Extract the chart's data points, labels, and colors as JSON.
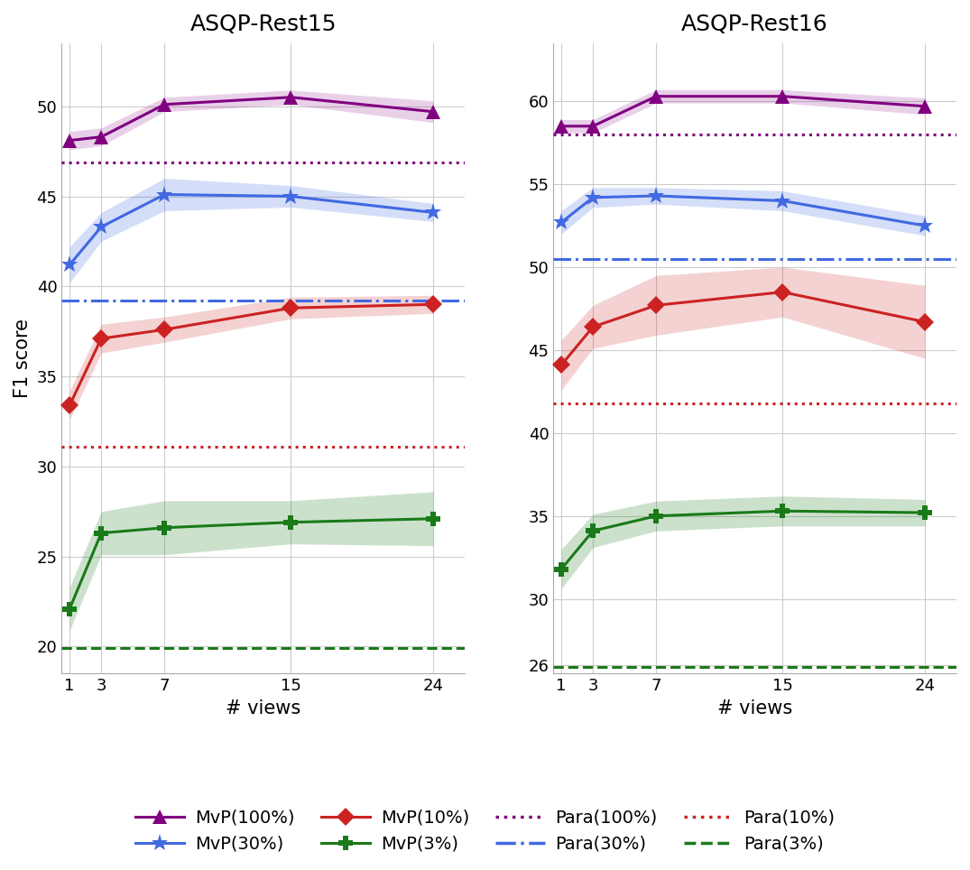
{
  "x_ticks": [
    1,
    3,
    7,
    15,
    24
  ],
  "rest15": {
    "title": "ASQP-Rest15",
    "ylim": [
      18.5,
      53.5
    ],
    "yticks": [
      20,
      25,
      30,
      35,
      40,
      45,
      50
    ],
    "mvp_100_mean": [
      48.1,
      48.3,
      50.1,
      50.5,
      49.7
    ],
    "mvp_100_std": [
      0.5,
      0.5,
      0.4,
      0.4,
      0.6
    ],
    "mvp_30_mean": [
      41.2,
      43.3,
      45.1,
      45.0,
      44.1
    ],
    "mvp_30_std": [
      1.0,
      0.8,
      0.9,
      0.6,
      0.5
    ],
    "mvp_10_mean": [
      33.4,
      37.1,
      37.6,
      38.8,
      39.0
    ],
    "mvp_10_std": [
      0.8,
      0.8,
      0.7,
      0.6,
      0.5
    ],
    "mvp_3_mean": [
      22.1,
      26.3,
      26.6,
      26.9,
      27.1
    ],
    "mvp_3_std": [
      1.2,
      1.2,
      1.5,
      1.2,
      1.5
    ],
    "para_100": 46.9,
    "para_30": 39.2,
    "para_10": 31.1,
    "para_3": 19.9
  },
  "rest16": {
    "title": "ASQP-Rest16",
    "ylim": [
      25.5,
      63.5
    ],
    "yticks": [
      26,
      30,
      35,
      40,
      45,
      50,
      55,
      60
    ],
    "mvp_100_mean": [
      58.5,
      58.5,
      60.3,
      60.3,
      59.7
    ],
    "mvp_100_std": [
      0.4,
      0.4,
      0.4,
      0.4,
      0.5
    ],
    "mvp_30_mean": [
      52.7,
      54.2,
      54.3,
      54.0,
      52.5
    ],
    "mvp_30_std": [
      0.7,
      0.6,
      0.5,
      0.6,
      0.6
    ],
    "mvp_10_mean": [
      44.1,
      46.4,
      47.7,
      48.5,
      46.7
    ],
    "mvp_10_std": [
      1.5,
      1.3,
      1.8,
      1.5,
      2.2
    ],
    "mvp_3_mean": [
      31.8,
      34.1,
      35.0,
      35.3,
      35.2
    ],
    "mvp_3_std": [
      1.2,
      1.0,
      0.9,
      0.9,
      0.8
    ],
    "para_100": 58.0,
    "para_30": 50.5,
    "para_10": 41.8,
    "para_3": 25.9
  },
  "colors": {
    "purple": "#800080",
    "blue": "#4169E1",
    "red": "#CC2222",
    "green": "#1A7A1A"
  },
  "fill_alphas": {
    "purple": 0.18,
    "blue": 0.22,
    "red": 0.2,
    "green": 0.22
  },
  "ylabel": "F1 score",
  "xlabel": "# views",
  "legend": {
    "mvp_100": "MvP(100%)",
    "mvp_30": "MvP(30%)",
    "mvp_10": "MvP(10%)",
    "mvp_3": "MvP(3%)",
    "para_100": "Para(100%)",
    "para_30": "Para(30%)",
    "para_10": "Para(10%)",
    "para_3": "Para(3%)"
  }
}
